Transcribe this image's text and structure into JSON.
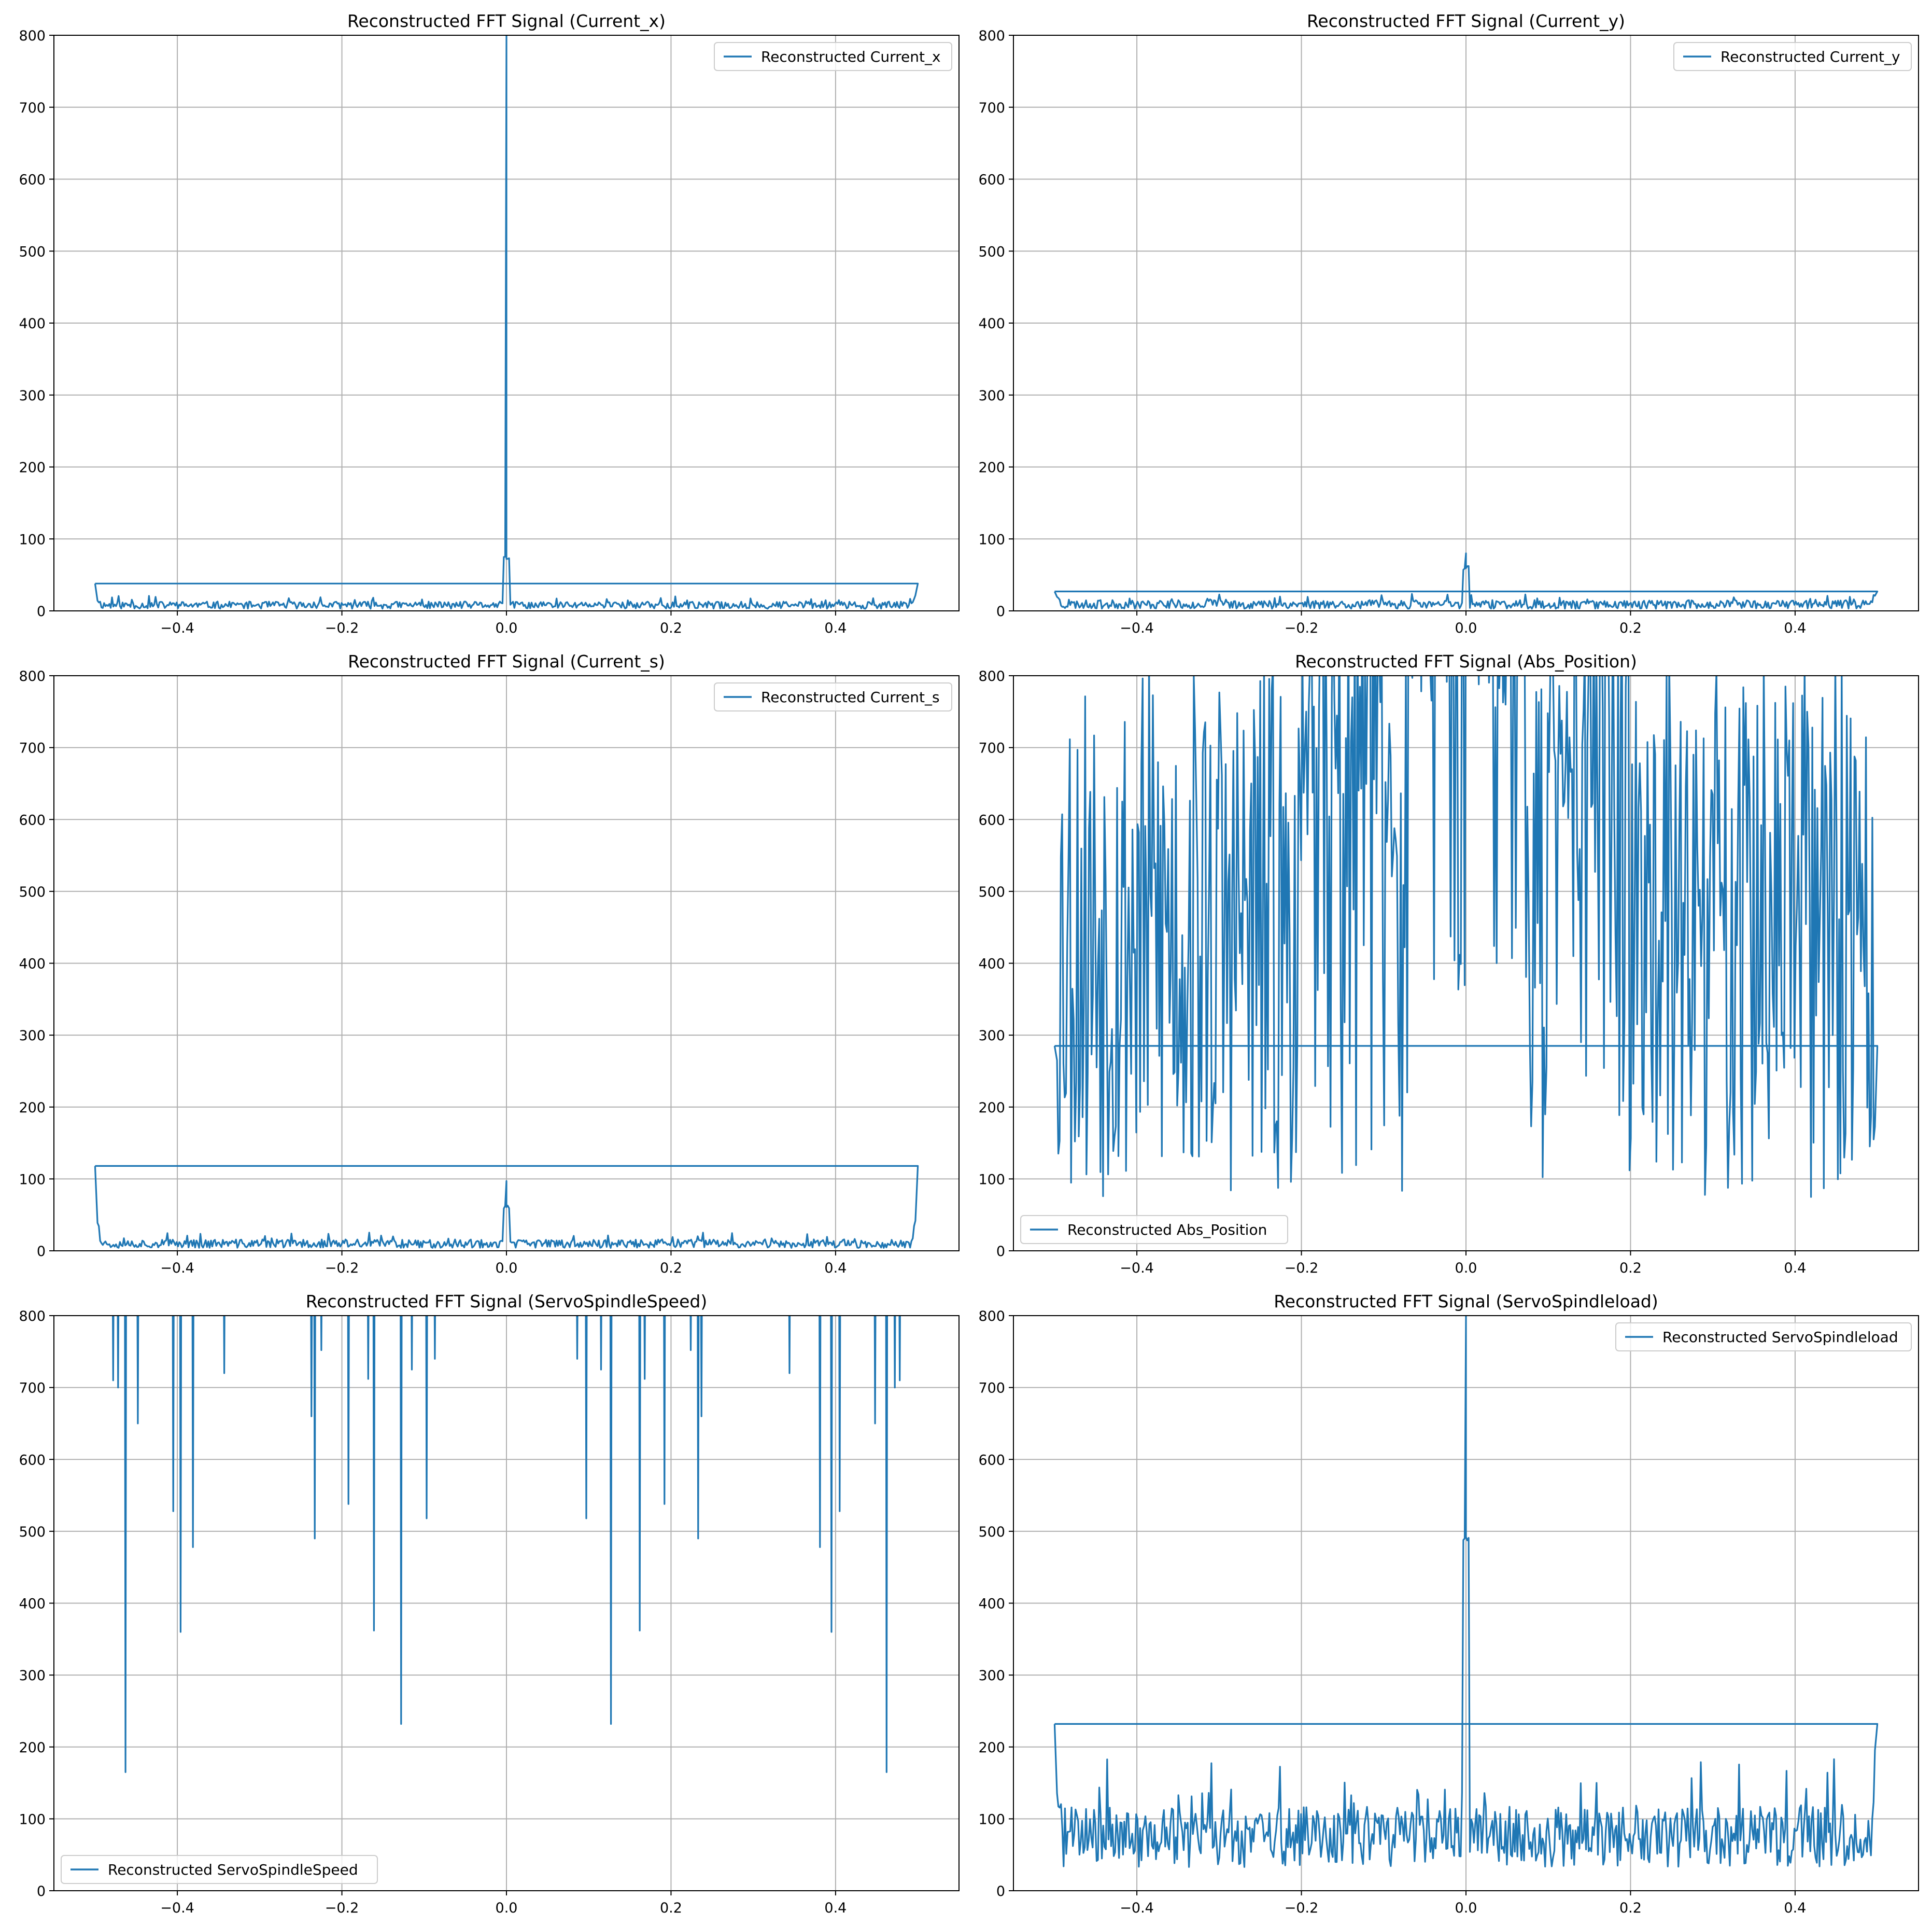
{
  "colors": {
    "line": "#1f77b4",
    "grid": "#b0b0b0",
    "background": "#ffffff"
  },
  "chart_data": [
    {
      "type": "line",
      "title": "Reconstructed FFT Signal (Current_x)",
      "legend": "Reconstructed Current_x",
      "legend_loc": "upper-right",
      "xlim": [
        -0.55,
        0.55
      ],
      "ylim": [
        0,
        800
      ],
      "xticks": [
        -0.4,
        -0.2,
        0.0,
        0.2,
        0.4
      ],
      "xtick_labels": [
        "−0.4",
        "−0.2",
        "0.0",
        "0.2",
        "0.4"
      ],
      "yticks": [
        0,
        100,
        200,
        300,
        400,
        500,
        600,
        700,
        800
      ],
      "ytick_labels": [
        "0",
        "100",
        "200",
        "300",
        "400",
        "500",
        "600",
        "700",
        "800"
      ],
      "grid": true,
      "signal": {
        "kind": "spectrum",
        "base": 8,
        "noise": 5,
        "peak": 800,
        "side_peak": 75,
        "edge": 38,
        "closing_level": 38,
        "seed": 11
      }
    },
    {
      "type": "line",
      "title": "Reconstructed FFT Signal (Current_y)",
      "legend": "Reconstructed Current_y",
      "legend_loc": "upper-right",
      "xlim": [
        -0.55,
        0.55
      ],
      "ylim": [
        0,
        800
      ],
      "xticks": [
        -0.4,
        -0.2,
        0.0,
        0.2,
        0.4
      ],
      "xtick_labels": [
        "−0.4",
        "−0.2",
        "0.0",
        "0.2",
        "0.4"
      ],
      "yticks": [
        0,
        100,
        200,
        300,
        400,
        500,
        600,
        700,
        800
      ],
      "ytick_labels": [
        "0",
        "100",
        "200",
        "300",
        "400",
        "500",
        "600",
        "700",
        "800"
      ],
      "grid": true,
      "signal": {
        "kind": "spectrum",
        "base": 9,
        "noise": 6,
        "peak": 80,
        "side_peak": 60,
        "edge": 55,
        "closing_level": 27,
        "seed": 23
      }
    },
    {
      "type": "line",
      "title": "Reconstructed FFT Signal (Current_s)",
      "legend": "Reconstructed Current_s",
      "legend_loc": "upper-right",
      "xlim": [
        -0.55,
        0.55
      ],
      "ylim": [
        0,
        800
      ],
      "xticks": [
        -0.4,
        -0.2,
        0.0,
        0.2,
        0.4
      ],
      "xtick_labels": [
        "−0.4",
        "−0.2",
        "0.0",
        "0.2",
        "0.4"
      ],
      "yticks": [
        0,
        100,
        200,
        300,
        400,
        500,
        600,
        700,
        800
      ],
      "ytick_labels": [
        "0",
        "100",
        "200",
        "300",
        "400",
        "500",
        "600",
        "700",
        "800"
      ],
      "grid": true,
      "signal": {
        "kind": "spectrum",
        "base": 10,
        "noise": 6,
        "peak": 97,
        "side_peak": 60,
        "edge": 118,
        "closing_level": 118,
        "seed": 37
      }
    },
    {
      "type": "line",
      "title": "Reconstructed FFT Signal (Abs_Position)",
      "legend": "Reconstructed Abs_Position",
      "legend_loc": "lower-left",
      "xlim": [
        -0.55,
        0.55
      ],
      "ylim": [
        0,
        800
      ],
      "xticks": [
        -0.4,
        -0.2,
        0.0,
        0.2,
        0.4
      ],
      "xtick_labels": [
        "−0.4",
        "−0.2",
        "0.0",
        "0.2",
        "0.4"
      ],
      "yticks": [
        0,
        100,
        200,
        300,
        400,
        500,
        600,
        700,
        800
      ],
      "ytick_labels": [
        "0",
        "100",
        "200",
        "300",
        "400",
        "500",
        "600",
        "700",
        "800"
      ],
      "grid": true,
      "signal": {
        "kind": "dense",
        "edge": 285,
        "closing_level": 285,
        "seed": 53
      }
    },
    {
      "type": "line",
      "title": "Reconstructed FFT Signal (ServoSpindleSpeed)",
      "legend": "Reconstructed ServoSpindleSpeed",
      "legend_loc": "lower-left",
      "xlim": [
        -0.55,
        0.55
      ],
      "ylim": [
        0,
        800
      ],
      "xticks": [
        -0.4,
        -0.2,
        0.0,
        0.2,
        0.4
      ],
      "xtick_labels": [
        "−0.4",
        "−0.2",
        "0.0",
        "0.2",
        "0.4"
      ],
      "yticks": [
        0,
        100,
        200,
        300,
        400,
        500,
        600,
        700,
        800
      ],
      "ytick_labels": [
        "0",
        "100",
        "200",
        "300",
        "400",
        "500",
        "600",
        "700",
        "800"
      ],
      "grid": true,
      "signal": {
        "kind": "spikes",
        "spikes": [
          [
            -0.478,
            710
          ],
          [
            -0.472,
            700
          ],
          [
            -0.463,
            165
          ],
          [
            -0.448,
            650
          ],
          [
            -0.405,
            528
          ],
          [
            -0.396,
            360
          ],
          [
            -0.381,
            478
          ],
          [
            -0.343,
            720
          ],
          [
            -0.237,
            660
          ],
          [
            -0.233,
            490
          ],
          [
            -0.225,
            752
          ],
          [
            -0.192,
            538
          ],
          [
            -0.168,
            712
          ],
          [
            -0.161,
            362
          ],
          [
            -0.128,
            232
          ],
          [
            -0.115,
            725
          ],
          [
            -0.097,
            518
          ],
          [
            -0.087,
            740
          ],
          [
            0.086,
            740
          ],
          [
            0.097,
            518
          ],
          [
            0.115,
            725
          ],
          [
            0.127,
            232
          ],
          [
            0.162,
            362
          ],
          [
            0.168,
            712
          ],
          [
            0.192,
            538
          ],
          [
            0.224,
            752
          ],
          [
            0.233,
            490
          ],
          [
            0.237,
            660
          ],
          [
            0.344,
            720
          ],
          [
            0.381,
            478
          ],
          [
            0.395,
            360
          ],
          [
            0.405,
            528
          ],
          [
            0.448,
            650
          ],
          [
            0.462,
            165
          ],
          [
            0.472,
            700
          ],
          [
            0.478,
            710
          ]
        ]
      }
    },
    {
      "type": "line",
      "title": "Reconstructed FFT Signal (ServoSpindleload)",
      "legend": "Reconstructed ServoSpindleload",
      "legend_loc": "upper-right",
      "xlim": [
        -0.55,
        0.55
      ],
      "ylim": [
        0,
        800
      ],
      "xticks": [
        -0.4,
        -0.2,
        0.0,
        0.2,
        0.4
      ],
      "xtick_labels": [
        "−0.4",
        "−0.2",
        "0.0",
        "0.2",
        "0.4"
      ],
      "yticks": [
        0,
        100,
        200,
        300,
        400,
        500,
        600,
        700,
        800
      ],
      "ytick_labels": [
        "0",
        "100",
        "200",
        "300",
        "400",
        "500",
        "600",
        "700",
        "800"
      ],
      "grid": true,
      "signal": {
        "kind": "spectrum",
        "base": 75,
        "noise": 42,
        "peak": 800,
        "side_peak": 490,
        "edge": 348,
        "closing_level": 232,
        "seed": 71
      }
    }
  ]
}
